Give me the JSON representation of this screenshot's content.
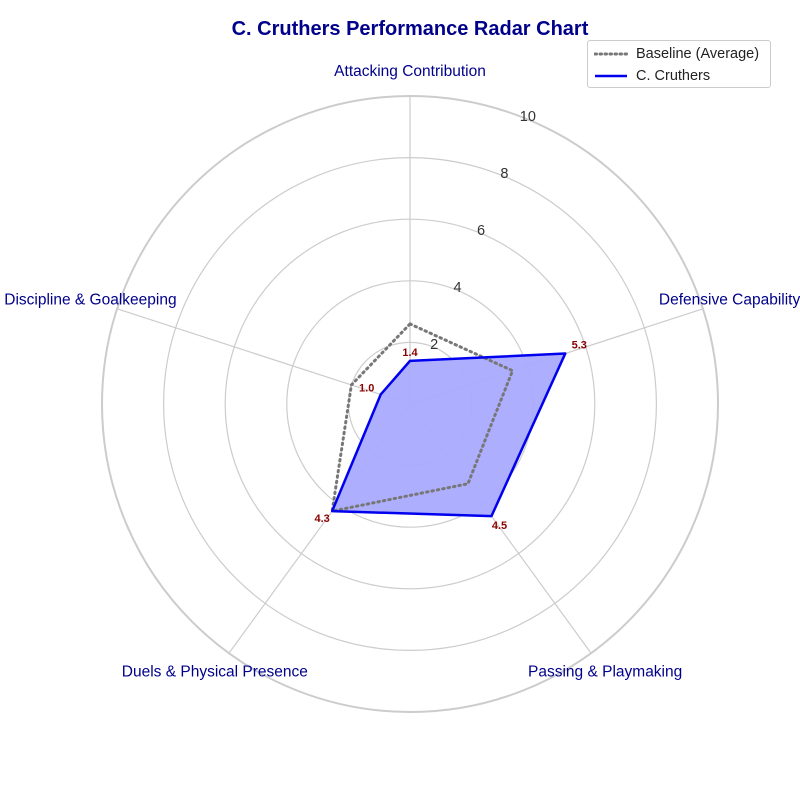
{
  "chart_data": {
    "type": "radar",
    "title": "C. Cruthers Performance Radar Chart",
    "axes": [
      "Attacking Contribution",
      "Defensive Capability",
      "Passing & Playmaking",
      "Duels & Physical Presence",
      "Discipline & Goalkeeping"
    ],
    "rlim": [
      0,
      10
    ],
    "r_ticks": [
      2,
      4,
      6,
      8,
      10
    ],
    "series": [
      {
        "name": "Baseline (Average)",
        "values": [
          2.6,
          3.5,
          3.2,
          4.3,
          2.0
        ],
        "color": "#777777",
        "style": "dotted"
      },
      {
        "name": "C. Cruthers",
        "values": [
          1.4,
          5.3,
          4.5,
          4.3,
          1.0
        ],
        "color": "#0000ee",
        "fill": "#aaaaff",
        "style": "solid"
      }
    ],
    "data_labels": [
      "1.4",
      "5.3",
      "4.5",
      "4.3",
      "1.0"
    ],
    "legend_position": "top-right",
    "grid": true
  },
  "colors": {
    "title": "#00008b",
    "axis_label": "#00008b",
    "data_label": "#8b0000",
    "grid": "#cccccc",
    "tick_label": "#333333"
  }
}
